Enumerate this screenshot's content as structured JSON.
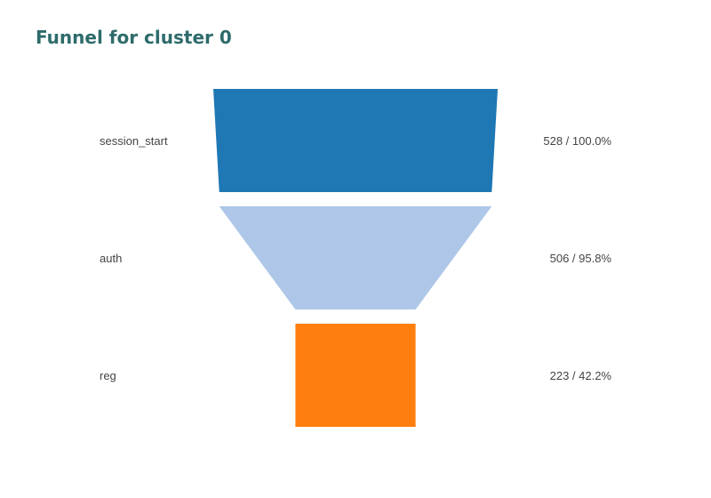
{
  "chart_data": {
    "type": "funnel",
    "title": "Funnel for cluster 0",
    "stages": [
      {
        "name": "session_start",
        "value": 528,
        "percent": 100.0,
        "label": "528 / 100.0%",
        "color": "#1f77b4"
      },
      {
        "name": "auth",
        "value": 506,
        "percent": 95.8,
        "label": "506 / 95.8%",
        "color": "#aec7e8"
      },
      {
        "name": "reg",
        "value": 223,
        "percent": 42.2,
        "label": "223 / 42.2%",
        "color": "#ff7f0e"
      }
    ],
    "title_color": "#2e6b6b",
    "text_color": "#444444"
  }
}
